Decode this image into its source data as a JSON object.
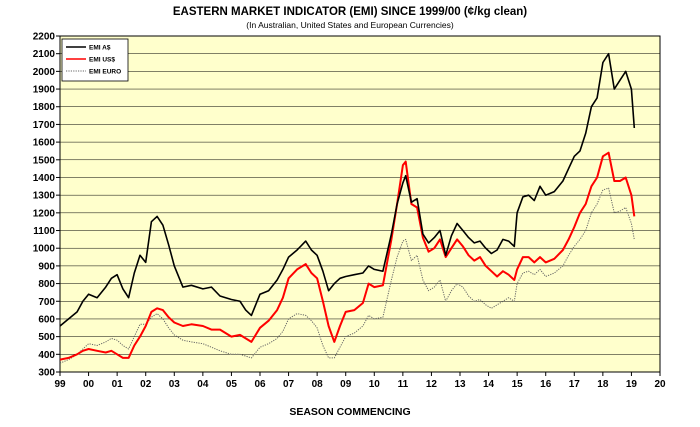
{
  "chart_data": {
    "type": "line",
    "title": "EASTERN MARKET INDICATOR (EMI) SINCE 1999/00 (¢/kg clean)",
    "subtitle": "(In Australian, United States and European Currencies)",
    "xlabel": "SEASON COMMENCING",
    "ylabel": "",
    "xlim": [
      1999,
      2020
    ],
    "ylim": [
      300,
      2200
    ],
    "yticks": [
      300,
      400,
      500,
      600,
      700,
      800,
      900,
      1000,
      1100,
      1200,
      1300,
      1400,
      1500,
      1600,
      1700,
      1800,
      1900,
      2000,
      2100,
      2200
    ],
    "xtick_labels": [
      "99",
      "00",
      "01",
      "02",
      "03",
      "04",
      "05",
      "06",
      "07",
      "08",
      "09",
      "10",
      "11",
      "12",
      "13",
      "14",
      "15",
      "16",
      "17",
      "18",
      "19",
      "20"
    ],
    "grid": "horizontal",
    "legend_position": "top-left",
    "background_color": "#ffffcc",
    "series": [
      {
        "name": "EMI A$",
        "color": "#000000",
        "style": "solid",
        "x": [
          1999.0,
          1999.3,
          1999.6,
          1999.8,
          2000.0,
          2000.3,
          2000.6,
          2000.8,
          2001.0,
          2001.2,
          2001.4,
          2001.6,
          2001.8,
          2002.0,
          2002.2,
          2002.4,
          2002.6,
          2002.8,
          2003.0,
          2003.3,
          2003.6,
          2004.0,
          2004.3,
          2004.6,
          2005.0,
          2005.3,
          2005.5,
          2005.7,
          2006.0,
          2006.3,
          2006.6,
          2006.8,
          2007.0,
          2007.3,
          2007.6,
          2007.8,
          2008.0,
          2008.2,
          2008.4,
          2008.6,
          2008.8,
          2009.0,
          2009.3,
          2009.6,
          2009.8,
          2010.0,
          2010.3,
          2010.6,
          2010.8,
          2011.0,
          2011.1,
          2011.3,
          2011.5,
          2011.7,
          2011.9,
          2012.1,
          2012.3,
          2012.5,
          2012.7,
          2012.9,
          2013.1,
          2013.3,
          2013.5,
          2013.7,
          2013.9,
          2014.1,
          2014.3,
          2014.5,
          2014.7,
          2014.9,
          2015.0,
          2015.2,
          2015.4,
          2015.6,
          2015.8,
          2016.0,
          2016.3,
          2016.6,
          2016.8,
          2017.0,
          2017.2,
          2017.4,
          2017.6,
          2017.8,
          2018.0,
          2018.2,
          2018.4,
          2018.6,
          2018.8,
          2019.0,
          2019.1
        ],
        "values": [
          560,
          600,
          640,
          700,
          740,
          720,
          780,
          830,
          850,
          770,
          720,
          860,
          960,
          920,
          1150,
          1180,
          1130,
          1020,
          900,
          780,
          790,
          770,
          780,
          730,
          710,
          700,
          650,
          620,
          740,
          760,
          820,
          880,
          950,
          990,
          1040,
          990,
          960,
          870,
          760,
          800,
          830,
          840,
          850,
          860,
          900,
          880,
          870,
          1080,
          1250,
          1370,
          1410,
          1260,
          1280,
          1080,
          1030,
          1060,
          1100,
          960,
          1070,
          1140,
          1100,
          1060,
          1030,
          1040,
          1000,
          970,
          990,
          1050,
          1040,
          1010,
          1200,
          1290,
          1300,
          1270,
          1350,
          1300,
          1320,
          1380,
          1450,
          1520,
          1550,
          1650,
          1800,
          1850,
          2050,
          2100,
          1900,
          1950,
          2000,
          1900,
          1680
        ]
      },
      {
        "name": "EMI US$",
        "color": "#ff0000",
        "style": "solid",
        "x": [
          1999.0,
          1999.3,
          1999.6,
          1999.8,
          2000.0,
          2000.3,
          2000.6,
          2000.8,
          2001.0,
          2001.2,
          2001.4,
          2001.6,
          2001.8,
          2002.0,
          2002.2,
          2002.4,
          2002.6,
          2002.8,
          2003.0,
          2003.3,
          2003.6,
          2004.0,
          2004.3,
          2004.6,
          2005.0,
          2005.3,
          2005.5,
          2005.7,
          2006.0,
          2006.3,
          2006.6,
          2006.8,
          2007.0,
          2007.3,
          2007.6,
          2007.8,
          2008.0,
          2008.2,
          2008.4,
          2008.6,
          2008.8,
          2009.0,
          2009.3,
          2009.6,
          2009.8,
          2010.0,
          2010.3,
          2010.6,
          2010.8,
          2011.0,
          2011.1,
          2011.3,
          2011.5,
          2011.7,
          2011.9,
          2012.1,
          2012.3,
          2012.5,
          2012.7,
          2012.9,
          2013.1,
          2013.3,
          2013.5,
          2013.7,
          2013.9,
          2014.1,
          2014.3,
          2014.5,
          2014.7,
          2014.9,
          2015.0,
          2015.2,
          2015.4,
          2015.6,
          2015.8,
          2016.0,
          2016.3,
          2016.6,
          2016.8,
          2017.0,
          2017.2,
          2017.4,
          2017.6,
          2017.8,
          2018.0,
          2018.2,
          2018.4,
          2018.6,
          2018.8,
          2019.0,
          2019.1
        ],
        "values": [
          370,
          380,
          400,
          420,
          430,
          420,
          410,
          420,
          400,
          380,
          380,
          450,
          500,
          560,
          640,
          660,
          650,
          610,
          580,
          560,
          570,
          560,
          540,
          540,
          500,
          510,
          490,
          470,
          550,
          590,
          650,
          720,
          830,
          880,
          910,
          860,
          830,
          700,
          560,
          470,
          560,
          640,
          650,
          690,
          800,
          780,
          790,
          1050,
          1250,
          1470,
          1490,
          1250,
          1230,
          1060,
          980,
          1000,
          1050,
          950,
          1000,
          1050,
          1010,
          960,
          930,
          950,
          900,
          870,
          840,
          870,
          850,
          820,
          880,
          950,
          950,
          920,
          950,
          920,
          940,
          990,
          1050,
          1120,
          1200,
          1250,
          1350,
          1400,
          1520,
          1540,
          1380,
          1380,
          1400,
          1300,
          1180
        ]
      },
      {
        "name": "EMI EURO",
        "color": "#666666",
        "style": "dotted",
        "x": [
          1999.0,
          1999.3,
          1999.6,
          1999.8,
          2000.0,
          2000.3,
          2000.6,
          2000.8,
          2001.0,
          2001.2,
          2001.4,
          2001.6,
          2001.8,
          2002.0,
          2002.2,
          2002.4,
          2002.6,
          2002.8,
          2003.0,
          2003.3,
          2003.6,
          2004.0,
          2004.3,
          2004.6,
          2005.0,
          2005.3,
          2005.5,
          2005.7,
          2006.0,
          2006.3,
          2006.6,
          2006.8,
          2007.0,
          2007.3,
          2007.6,
          2007.8,
          2008.0,
          2008.2,
          2008.4,
          2008.6,
          2008.8,
          2009.0,
          2009.3,
          2009.6,
          2009.8,
          2010.0,
          2010.3,
          2010.6,
          2010.8,
          2011.0,
          2011.1,
          2011.3,
          2011.5,
          2011.7,
          2011.9,
          2012.1,
          2012.3,
          2012.5,
          2012.7,
          2012.9,
          2013.1,
          2013.3,
          2013.5,
          2013.7,
          2013.9,
          2014.1,
          2014.3,
          2014.5,
          2014.7,
          2014.9,
          2015.0,
          2015.2,
          2015.4,
          2015.6,
          2015.8,
          2016.0,
          2016.3,
          2016.6,
          2016.8,
          2017.0,
          2017.2,
          2017.4,
          2017.6,
          2017.8,
          2018.0,
          2018.2,
          2018.4,
          2018.6,
          2018.8,
          2019.0,
          2019.1
        ],
        "values": [
          350,
          370,
          400,
          430,
          460,
          450,
          470,
          490,
          480,
          450,
          430,
          500,
          570,
          570,
          610,
          630,
          600,
          550,
          510,
          480,
          470,
          460,
          440,
          420,
          400,
          400,
          390,
          380,
          440,
          460,
          490,
          530,
          600,
          630,
          620,
          590,
          550,
          450,
          380,
          380,
          440,
          500,
          520,
          560,
          620,
          600,
          610,
          820,
          950,
          1040,
          1050,
          930,
          960,
          820,
          760,
          780,
          820,
          700,
          760,
          800,
          780,
          730,
          700,
          710,
          680,
          660,
          680,
          700,
          720,
          700,
          800,
          860,
          870,
          850,
          880,
          840,
          860,
          900,
          960,
          1010,
          1050,
          1100,
          1200,
          1250,
          1330,
          1340,
          1200,
          1210,
          1230,
          1140,
          1050
        ]
      }
    ]
  }
}
